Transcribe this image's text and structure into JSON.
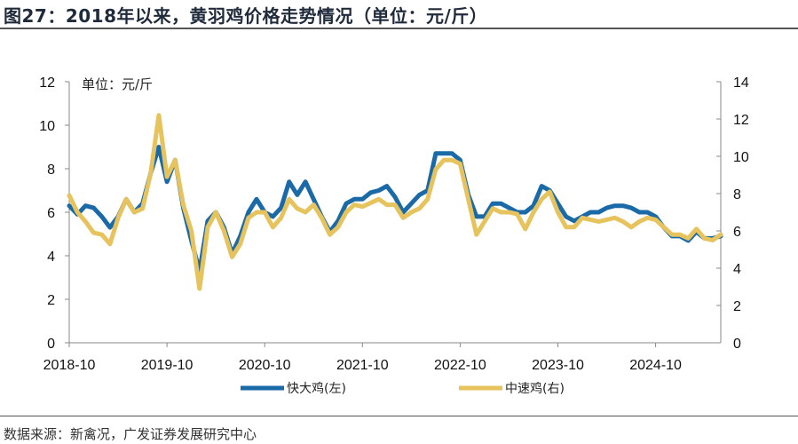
{
  "title": "图27：2018年以来，黄羽鸡价格走势情况（单位：元/斤）",
  "source": "数据来源：新禽况，广发证券发展研究中心",
  "chart_data": {
    "type": "line",
    "title": "图27：2018年以来，黄羽鸡价格走势情况（单位：元/斤）",
    "unit_label": "单位：元/斤",
    "x_tick_labels": [
      "2018-10",
      "2019-10",
      "2020-10",
      "2021-10",
      "2022-10",
      "2023-10",
      "2024-10"
    ],
    "y_left": {
      "ylim": [
        0,
        12
      ],
      "ticks": [
        "0",
        "2",
        "4",
        "6",
        "8",
        "10",
        "12"
      ]
    },
    "y_right": {
      "ylim": [
        0,
        14
      ],
      "ticks": [
        "0",
        "2",
        "4",
        "6",
        "8",
        "10",
        "12",
        "14"
      ]
    },
    "grid": false,
    "legend_position": "bottom",
    "x": [
      "2018-10",
      "2018-11",
      "2018-12",
      "2019-01",
      "2019-02",
      "2019-03",
      "2019-04",
      "2019-05",
      "2019-06",
      "2019-07",
      "2019-08",
      "2019-09",
      "2019-10",
      "2019-11",
      "2019-12",
      "2020-01",
      "2020-02",
      "2020-03",
      "2020-04",
      "2020-05",
      "2020-06",
      "2020-07",
      "2020-08",
      "2020-09",
      "2020-10",
      "2020-11",
      "2020-12",
      "2021-01",
      "2021-02",
      "2021-03",
      "2021-04",
      "2021-05",
      "2021-06",
      "2021-07",
      "2021-08",
      "2021-09",
      "2021-10",
      "2021-11",
      "2021-12",
      "2022-01",
      "2022-02",
      "2022-03",
      "2022-04",
      "2022-05",
      "2022-06",
      "2022-07",
      "2022-08",
      "2022-09",
      "2022-10",
      "2022-11",
      "2022-12",
      "2023-01",
      "2023-02",
      "2023-03",
      "2023-04",
      "2023-05",
      "2023-06",
      "2023-07",
      "2023-08",
      "2023-09",
      "2023-10",
      "2023-11",
      "2023-12",
      "2024-01",
      "2024-02",
      "2024-03",
      "2024-04",
      "2024-05",
      "2024-06",
      "2024-07",
      "2024-08",
      "2024-09",
      "2024-10",
      "2024-11",
      "2024-12",
      "2025-01",
      "2025-02",
      "2025-03",
      "2025-04",
      "2025-05",
      "2025-06"
    ],
    "series": [
      {
        "name": "快大鸡(左)",
        "axis": "left",
        "color": "#1b6aa8",
        "values": [
          6.3,
          5.9,
          6.3,
          6.2,
          5.8,
          5.3,
          5.8,
          6.6,
          6.0,
          6.4,
          7.8,
          9.0,
          7.4,
          8.4,
          6.2,
          4.7,
          3.3,
          5.6,
          6.0,
          5.3,
          4.1,
          4.9,
          6.0,
          6.6,
          6.0,
          5.8,
          6.2,
          7.4,
          6.8,
          7.4,
          6.6,
          5.8,
          5.1,
          5.6,
          6.4,
          6.6,
          6.6,
          6.9,
          7.0,
          7.2,
          6.7,
          6.0,
          6.4,
          6.8,
          7.0,
          8.7,
          8.7,
          8.7,
          8.4,
          6.8,
          5.8,
          5.8,
          6.4,
          6.4,
          6.2,
          6.0,
          6.0,
          6.3,
          7.2,
          7.0,
          6.4,
          5.8,
          5.6,
          5.8,
          6.0,
          6.0,
          6.2,
          6.3,
          6.3,
          6.2,
          6.0,
          6.0,
          5.8,
          5.3,
          4.9,
          4.9,
          4.7,
          5.1,
          4.8,
          4.8,
          4.9
        ]
      },
      {
        "name": "中速鸡(右)",
        "axis": "right",
        "color": "#e6c35c",
        "values": [
          7.9,
          7.0,
          6.5,
          5.9,
          5.8,
          5.3,
          6.7,
          7.7,
          7.0,
          7.2,
          9.1,
          12.2,
          8.9,
          9.8,
          7.4,
          6.0,
          2.9,
          6.2,
          7.0,
          6.0,
          4.6,
          5.3,
          6.7,
          7.0,
          7.0,
          6.2,
          6.7,
          7.7,
          7.2,
          7.0,
          7.4,
          6.7,
          5.8,
          6.2,
          7.0,
          7.4,
          7.3,
          7.5,
          7.7,
          7.4,
          7.4,
          6.7,
          7.0,
          7.2,
          7.7,
          9.3,
          9.8,
          9.8,
          9.6,
          7.7,
          5.8,
          6.5,
          7.2,
          7.0,
          7.0,
          6.9,
          6.1,
          7.0,
          7.7,
          8.1,
          7.0,
          6.2,
          6.2,
          6.7,
          6.6,
          6.5,
          6.6,
          6.7,
          6.5,
          6.2,
          6.5,
          6.7,
          6.6,
          6.2,
          5.8,
          5.8,
          5.6,
          6.1,
          5.6,
          5.5,
          5.8
        ]
      }
    ]
  }
}
